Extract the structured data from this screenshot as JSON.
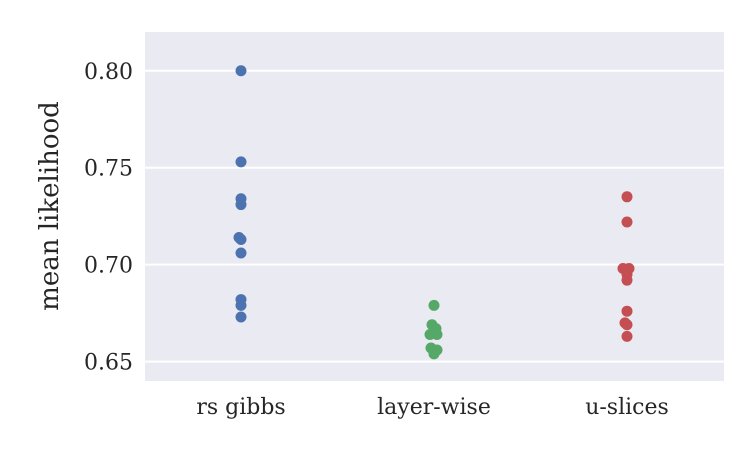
{
  "chart_data": {
    "type": "scatter",
    "title": "",
    "xlabel": "",
    "ylabel": "mean likelihood",
    "ylim": [
      0.64,
      0.82
    ],
    "yticks": [
      "0.65",
      "0.70",
      "0.75",
      "0.80"
    ],
    "categories": [
      "rs gibbs",
      "layer-wise",
      "u-slices"
    ],
    "grid": true,
    "background": "#EAEAF2",
    "series": [
      {
        "category": "rs gibbs",
        "color": "#4C72B0",
        "values": [
          0.8,
          0.753,
          0.734,
          0.731,
          0.714,
          0.713,
          0.706,
          0.682,
          0.679,
          0.673
        ]
      },
      {
        "category": "layer-wise",
        "color": "#55A868",
        "values": [
          0.679,
          0.669,
          0.667,
          0.665,
          0.664,
          0.664,
          0.657,
          0.656,
          0.656,
          0.654
        ]
      },
      {
        "category": "u-slices",
        "color": "#C44E52",
        "values": [
          0.735,
          0.722,
          0.698,
          0.698,
          0.695,
          0.692,
          0.676,
          0.67,
          0.669,
          0.663
        ]
      }
    ]
  }
}
